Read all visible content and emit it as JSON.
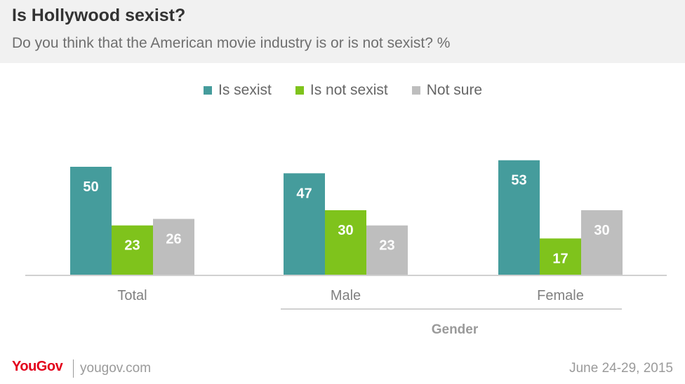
{
  "header": {
    "title": "Is Hollywood sexist?",
    "subtitle": "Do you think that the American movie industry is or is not sexist? %"
  },
  "footer": {
    "brand": "YouGov",
    "site": "yougov.com",
    "date": "June 24-29, 2015"
  },
  "colors": {
    "is_sexist": "#459c9c",
    "is_not_sexist": "#7fc31c",
    "not_sure": "#bebebe"
  },
  "chart_data": {
    "type": "bar",
    "title": "Is Hollywood sexist?",
    "subtitle": "Do you think that the American movie industry is or is not sexist? %",
    "categories": [
      "Total",
      "Male",
      "Female"
    ],
    "group_label": "Gender",
    "group_categories": [
      "Male",
      "Female"
    ],
    "series": [
      {
        "name": "Is sexist",
        "values": [
          50,
          47,
          53
        ],
        "color": "#459c9c"
      },
      {
        "name": "Is not sexist",
        "values": [
          23,
          30,
          17
        ],
        "color": "#7fc31c"
      },
      {
        "name": "Not sure",
        "values": [
          26,
          23,
          30
        ],
        "color": "#bebebe"
      }
    ],
    "ylim": [
      0,
      100
    ],
    "legend_position": "top-center",
    "grid": false
  }
}
